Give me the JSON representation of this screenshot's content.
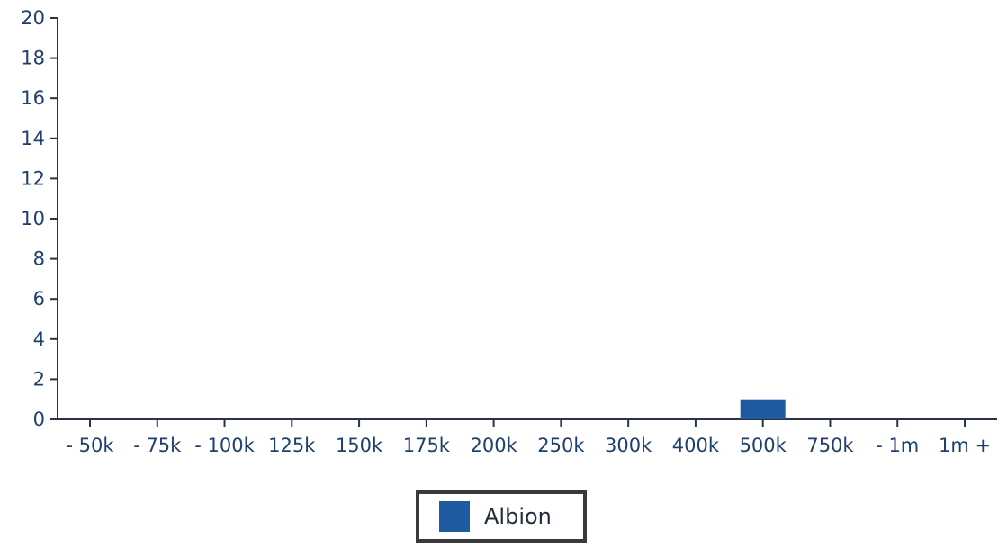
{
  "chart_data": {
    "type": "bar",
    "title": "",
    "xlabel": "",
    "ylabel": "",
    "categories": [
      "- 50k",
      "- 75k",
      "- 100k",
      "125k",
      "150k",
      "175k",
      "200k",
      "250k",
      "300k",
      "400k",
      "500k",
      "750k",
      "- 1m",
      "1m +"
    ],
    "series": [
      {
        "name": "Albion",
        "color": "#1e5aa0",
        "values": [
          0,
          0,
          0,
          0,
          0,
          0,
          0,
          0,
          0,
          0,
          1,
          0,
          0,
          0
        ]
      }
    ],
    "ylim": [
      0,
      20
    ],
    "yticks": [
      0,
      2,
      4,
      6,
      8,
      10,
      12,
      14,
      16,
      18,
      20
    ],
    "grid": false,
    "legend_position": "bottom-center"
  }
}
